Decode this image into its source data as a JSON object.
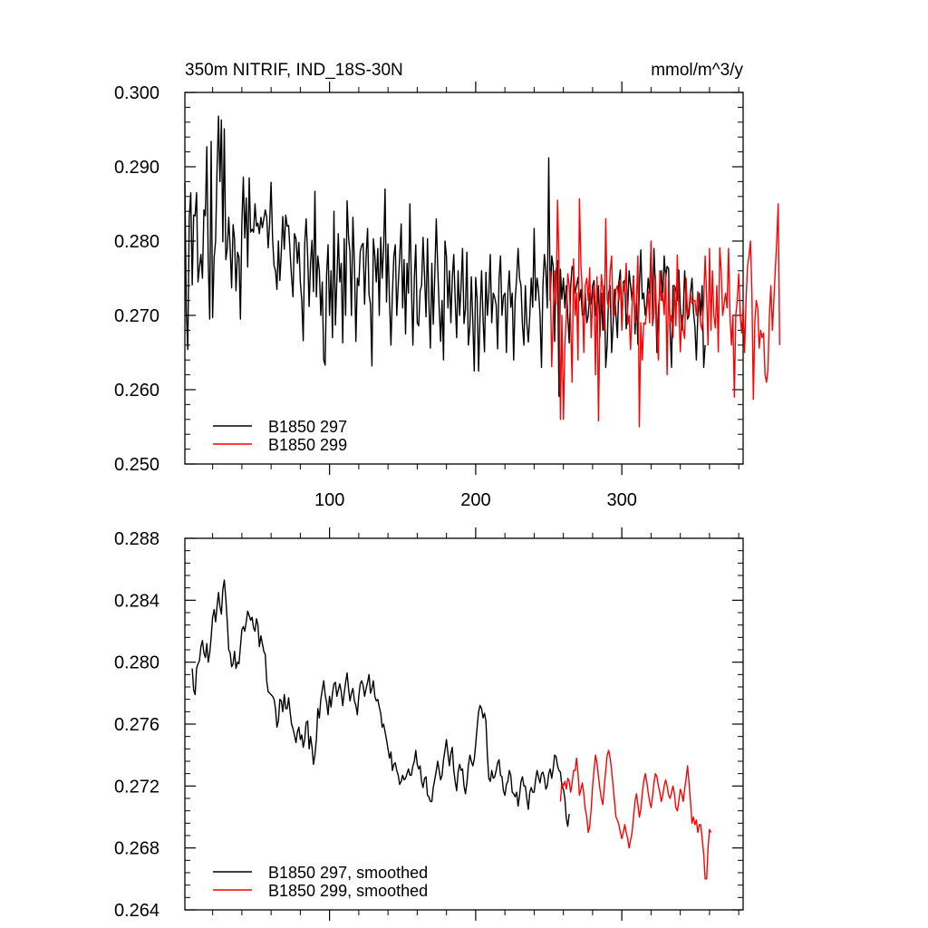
{
  "header": {
    "title": "350m NITRIF, IND_18S-30N",
    "units": "mmol/m^3/y"
  },
  "chart_data": [
    {
      "type": "line",
      "xlim": [
        1,
        383
      ],
      "ylim": [
        0.25,
        0.3
      ],
      "xticks": [
        100,
        200,
        300
      ],
      "xticklabels": [
        "100",
        "200",
        "300"
      ],
      "yticks": [
        0.25,
        0.26,
        0.27,
        0.28,
        0.29,
        0.3
      ],
      "yticklabels": [
        "0.250",
        "0.260",
        "0.270",
        "0.280",
        "0.290",
        "0.300"
      ],
      "legend_position": "bottom-left",
      "series": [
        {
          "name": "B1850 297",
          "color": "#000000",
          "x_start": 1,
          "values": [
            0.2878,
            0.2705,
            0.2654,
            0.2831,
            0.2865,
            0.2741,
            0.2835,
            0.2834,
            0.2865,
            0.2745,
            0.2765,
            0.2782,
            0.275,
            0.2842,
            0.2834,
            0.2927,
            0.2772,
            0.2695,
            0.2934,
            0.2697,
            0.2778,
            0.28,
            0.2897,
            0.2968,
            0.288,
            0.2963,
            0.2799,
            0.2951,
            0.2775,
            0.279,
            0.2832,
            0.279,
            0.2737,
            0.2822,
            0.2803,
            0.2733,
            0.2785,
            0.2778,
            0.2695,
            0.2825,
            0.2886,
            0.2804,
            0.2858,
            0.2765,
            0.2885,
            0.2812,
            0.2816,
            0.2812,
            0.285,
            0.282,
            0.2824,
            0.281,
            0.2832,
            0.2818,
            0.283,
            0.2842,
            0.2832,
            0.2791,
            0.2823,
            0.2879,
            0.2803,
            0.2767,
            0.276,
            0.2735,
            0.28,
            0.2747,
            0.2785,
            0.2833,
            0.2789,
            0.2835,
            0.282,
            0.2821,
            0.2785,
            0.2752,
            0.2725,
            0.281,
            0.2803,
            0.277,
            0.2798,
            0.2745,
            0.272,
            0.2666,
            0.2795,
            0.283,
            0.278,
            0.2712,
            0.2772,
            0.2801,
            0.2732,
            0.2867,
            0.2725,
            0.278,
            0.276,
            0.27,
            0.2745,
            0.264,
            0.2633,
            0.2755,
            0.2795,
            0.27,
            0.276,
            0.267,
            0.284,
            0.2687,
            0.2747,
            0.281,
            0.2745,
            0.277,
            0.2663,
            0.2803,
            0.27,
            0.2854,
            0.2805,
            0.2785,
            0.27,
            0.2832,
            0.277,
            0.2665,
            0.275,
            0.274,
            0.2786,
            0.2794,
            0.2797,
            0.2715,
            0.278,
            0.2817,
            0.2728,
            0.2715,
            0.2632,
            0.2803,
            0.278,
            0.2745,
            0.279,
            0.27,
            0.2805,
            0.275,
            0.279,
            0.287,
            0.2718,
            0.2796,
            0.272,
            0.266,
            0.273,
            0.278,
            0.2795,
            0.27,
            0.274,
            0.2778,
            0.2823,
            0.271,
            0.2775,
            0.2675,
            0.277,
            0.273,
            0.285,
            0.2745,
            0.266,
            0.275,
            0.2795,
            0.269,
            0.2686,
            0.2733,
            0.274,
            0.2805,
            0.2752,
            0.2698,
            0.2803,
            0.2716,
            0.2656,
            0.277,
            0.2688,
            0.2752,
            0.283,
            0.2765,
            0.271,
            0.2665,
            0.272,
            0.264,
            0.28,
            0.278,
            0.271,
            0.276,
            0.269,
            0.2751,
            0.2782,
            0.272,
            0.267,
            0.276,
            0.27,
            0.274,
            0.279,
            0.2689,
            0.2708,
            0.2785,
            0.266,
            0.2685,
            0.2752,
            0.2693,
            0.2625,
            0.2751,
            0.2722,
            0.2625,
            0.27,
            0.276,
            0.2696,
            0.2651,
            0.2758,
            0.27,
            0.2729,
            0.2782,
            0.269,
            0.273,
            0.2724,
            0.2714,
            0.2655,
            0.275,
            0.278,
            0.27,
            0.2726,
            0.273,
            0.265,
            0.273,
            0.276,
            0.2711,
            0.273,
            0.264,
            0.272,
            0.275,
            0.279,
            0.275,
            0.274,
            0.2687,
            0.266,
            0.274,
            0.269,
            0.2664,
            0.27,
            0.275,
            0.2711,
            0.2817,
            0.272,
            0.275,
            0.2734,
            0.27,
            0.263,
            0.274,
            0.2782,
            0.276,
            0.271,
            0.2912,
            0.272,
            0.278,
            0.2766,
            0.2665,
            0.276,
            0.2774,
            0.2591,
            0.2762,
            0.2722,
            0.275,
            0.271,
            0.274,
            0.27,
            0.2663,
            0.2738,
            0.2766,
            0.276,
            0.273,
            0.274,
            0.2751,
            0.272,
            0.2735,
            0.27,
            0.2701,
            0.273,
            0.269,
            0.27,
            0.273,
            0.2715,
            0.274,
            0.2747,
            0.27,
            0.2705,
            0.274,
            0.2671,
            0.273,
            0.268,
            0.274,
            0.263,
            0.266,
            0.273,
            0.274,
            0.265,
            0.2687,
            0.2735,
            0.27,
            0.267,
            0.2745,
            0.2761,
            0.2688,
            0.2745,
            0.2747,
            0.2682,
            0.271,
            0.276,
            0.274,
            0.272,
            0.2753,
            0.2675,
            0.2722,
            0.2661,
            0.274,
            0.2788,
            0.2722,
            0.273,
            0.27,
            0.2715,
            0.275,
            0.273,
            0.2796,
            0.27,
            0.279,
            0.2738,
            0.265,
            0.2708,
            0.273,
            0.276,
            0.272,
            0.278,
            0.275,
            0.2766,
            0.2763,
            0.268,
            0.263,
            0.274,
            0.274,
            0.2735,
            0.272,
            0.2761,
            0.271,
            0.268,
            0.27,
            0.276,
            0.272,
            0.2695,
            0.27,
            0.273,
            0.275,
            0.2705,
            0.2685,
            0.264,
            0.27,
            0.273,
            0.27,
            0.274,
            0.263,
            0.266
          ]
        },
        {
          "name": "B1850 299",
          "color": "#ff0000",
          "x_start": 251,
          "values": [
            0.276,
            0.2631,
            0.27,
            0.276,
            0.2715,
            0.2855,
            0.2773,
            0.256,
            0.27,
            0.256,
            0.266,
            0.27,
            0.2756,
            0.274,
            0.269,
            0.261,
            0.2776,
            0.27,
            0.273,
            0.264,
            0.2857,
            0.277,
            0.273,
            0.265,
            0.274,
            0.275,
            0.272,
            0.2764,
            0.267,
            0.272,
            0.274,
            0.262,
            0.2752,
            0.2558,
            0.27,
            0.2755,
            0.273,
            0.268,
            0.283,
            0.272,
            0.271,
            0.276,
            0.278,
            0.27,
            0.27,
            0.2735,
            0.274,
            0.272,
            0.2748,
            0.268,
            0.2743,
            0.2731,
            0.277,
            0.2688,
            0.27,
            0.2654,
            0.271,
            0.275,
            0.269,
            0.272,
            0.278,
            0.255,
            0.269,
            0.264,
            0.269,
            0.2688,
            0.2706,
            0.2732,
            0.269,
            0.28,
            0.2686,
            0.2701,
            0.2754,
            0.2677,
            0.264,
            0.276,
            0.272,
            0.273,
            0.2701,
            0.2757,
            0.262,
            0.275,
            0.269,
            0.27,
            0.267,
            0.274,
            0.2686,
            0.2781,
            0.271,
            0.2651,
            0.27,
            0.268,
            0.2669,
            0.275,
            0.27,
            0.2711,
            0.273,
            0.2716,
            0.272,
            0.272,
            0.27,
            0.2732,
            0.271,
            0.2688,
            0.268,
            0.272,
            0.278,
            0.2727,
            0.266,
            0.279,
            0.268,
            0.276,
            0.27,
            0.2683,
            0.274,
            0.2651,
            0.2791,
            0.276,
            0.27,
            0.2715,
            0.273,
            0.271,
            0.279,
            0.27,
            0.266,
            0.27,
            0.259,
            0.27,
            0.272,
            0.2756,
            0.27,
            0.2676,
            0.2713,
            0.265,
            0.272,
            0.2765,
            0.278,
            0.28,
            0.273,
            0.2587,
            0.269,
            0.272,
            0.271,
            0.2656,
            0.268,
            0.267,
            0.2676,
            0.262,
            0.261,
            0.2627,
            0.27,
            0.274,
            0.268,
            0.272,
            0.2762,
            0.28,
            0.285,
            0.266
          ]
        }
      ]
    },
    {
      "type": "line",
      "xlim": [
        1,
        383
      ],
      "ylim": [
        0.264,
        0.288
      ],
      "xticks": [
        100,
        200,
        300
      ],
      "xticklabels": [],
      "yticks": [
        0.264,
        0.268,
        0.272,
        0.276,
        0.28,
        0.284,
        0.288
      ],
      "yticklabels": [
        "0.264",
        "0.268",
        "0.272",
        "0.276",
        "0.280",
        "0.284",
        "0.288"
      ],
      "legend_position": "bottom-left",
      "series": [
        {
          "name": "B1850 297, smoothed",
          "color": "#000000",
          "x_start": 6,
          "values": [
            0.2796,
            0.2782,
            0.2779,
            0.2796,
            0.2799,
            0.2801,
            0.281,
            0.2814,
            0.2806,
            0.2803,
            0.2812,
            0.28,
            0.2806,
            0.2816,
            0.2829,
            0.2834,
            0.2826,
            0.2836,
            0.2845,
            0.2836,
            0.2831,
            0.2847,
            0.2853,
            0.2841,
            0.2826,
            0.2808,
            0.2806,
            0.2797,
            0.2799,
            0.2807,
            0.2796,
            0.28,
            0.2799,
            0.281,
            0.2821,
            0.2823,
            0.282,
            0.2826,
            0.2833,
            0.283,
            0.2827,
            0.2829,
            0.2822,
            0.282,
            0.2828,
            0.2824,
            0.281,
            0.2817,
            0.2812,
            0.2807,
            0.2805,
            0.2788,
            0.2781,
            0.278,
            0.2779,
            0.2778,
            0.2776,
            0.277,
            0.2758,
            0.2762,
            0.2776,
            0.2775,
            0.2768,
            0.2779,
            0.277,
            0.277,
            0.2777,
            0.2768,
            0.276,
            0.2757,
            0.2753,
            0.2748,
            0.2755,
            0.2758,
            0.275,
            0.2753,
            0.2745,
            0.275,
            0.2761,
            0.2762,
            0.2744,
            0.2752,
            0.2745,
            0.2734,
            0.274,
            0.275,
            0.277,
            0.2764,
            0.2776,
            0.2782,
            0.2788,
            0.2779,
            0.2774,
            0.2766,
            0.2778,
            0.2771,
            0.278,
            0.2786,
            0.2787,
            0.2778,
            0.2782,
            0.2786,
            0.2781,
            0.2772,
            0.278,
            0.2787,
            0.2793,
            0.2783,
            0.2775,
            0.278,
            0.2783,
            0.2775,
            0.2772,
            0.2766,
            0.2778,
            0.2786,
            0.2788,
            0.2785,
            0.2778,
            0.2783,
            0.2787,
            0.2792,
            0.278,
            0.2783,
            0.2788,
            0.2778,
            0.2775,
            0.2776,
            0.2771,
            0.2767,
            0.2758,
            0.276,
            0.2755,
            0.275,
            0.2744,
            0.2738,
            0.2742,
            0.273,
            0.2734,
            0.2735,
            0.273,
            0.2727,
            0.2721,
            0.2723,
            0.2727,
            0.2724,
            0.2725,
            0.2728,
            0.2731,
            0.2727,
            0.2727,
            0.2733,
            0.2736,
            0.2743,
            0.2734,
            0.2731,
            0.2733,
            0.2723,
            0.2719,
            0.2725,
            0.2726,
            0.2714,
            0.2713,
            0.271,
            0.271,
            0.2719,
            0.2724,
            0.273,
            0.2736,
            0.273,
            0.2724,
            0.2727,
            0.2737,
            0.2743,
            0.275,
            0.2741,
            0.2733,
            0.2741,
            0.2745,
            0.273,
            0.2723,
            0.2717,
            0.2729,
            0.2734,
            0.273,
            0.2731,
            0.272,
            0.2715,
            0.2722,
            0.2733,
            0.274,
            0.2736,
            0.2733,
            0.2737,
            0.2747,
            0.2758,
            0.2768,
            0.2772,
            0.277,
            0.2764,
            0.2767,
            0.2762,
            0.274,
            0.2725,
            0.2723,
            0.273,
            0.2725,
            0.2726,
            0.273,
            0.2735,
            0.2737,
            0.2727,
            0.2726,
            0.2717,
            0.2714,
            0.2721,
            0.2723,
            0.273,
            0.2727,
            0.2716,
            0.2715,
            0.2713,
            0.2716,
            0.2707,
            0.2714,
            0.2723,
            0.2726,
            0.272,
            0.272,
            0.2712,
            0.2705,
            0.2716,
            0.2719,
            0.2716,
            0.2716,
            0.2724,
            0.273,
            0.2726,
            0.2722,
            0.2728,
            0.2729,
            0.2725,
            0.2718,
            0.272,
            0.2728,
            0.2731,
            0.2725,
            0.2731,
            0.274,
            0.2739,
            0.2733,
            0.273,
            0.2729,
            0.272,
            0.2718,
            0.2712,
            0.2699,
            0.2694,
            0.2702
          ]
        },
        {
          "name": "B1850 299, smoothed",
          "color": "#ff0000",
          "x_start": 258,
          "values": [
            0.271,
            0.2722,
            0.272,
            0.2723,
            0.2718,
            0.2725,
            0.2723,
            0.2716,
            0.2722,
            0.273,
            0.273,
            0.2738,
            0.2728,
            0.2714,
            0.2718,
            0.2722,
            0.2715,
            0.2705,
            0.27,
            0.269,
            0.2694,
            0.2705,
            0.272,
            0.273,
            0.274,
            0.2735,
            0.2726,
            0.2718,
            0.2712,
            0.2708,
            0.272,
            0.273,
            0.274,
            0.2743,
            0.2738,
            0.273,
            0.272,
            0.271,
            0.27,
            0.2698,
            0.2695,
            0.269,
            0.2686,
            0.269,
            0.2695,
            0.269,
            0.2686,
            0.268,
            0.2685,
            0.269,
            0.27,
            0.271,
            0.2715,
            0.2708,
            0.27,
            0.2705,
            0.2715,
            0.2723,
            0.2728,
            0.2723,
            0.2716,
            0.271,
            0.2706,
            0.2713,
            0.2722,
            0.2728,
            0.2726,
            0.272,
            0.2716,
            0.271,
            0.2714,
            0.272,
            0.2724,
            0.272,
            0.2714,
            0.2712,
            0.2716,
            0.272,
            0.2715,
            0.2706,
            0.2704,
            0.271,
            0.2718,
            0.2715,
            0.271,
            0.2718,
            0.2725,
            0.2733,
            0.2722,
            0.271,
            0.2696,
            0.27,
            0.2695,
            0.2698,
            0.269,
            0.2695,
            0.2695,
            0.2686,
            0.2676,
            0.266,
            0.266,
            0.268,
            0.2692,
            0.269
          ]
        }
      ]
    }
  ]
}
